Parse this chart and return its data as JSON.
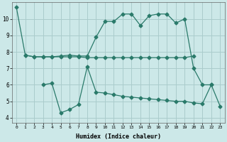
{
  "xlabel": "Humidex (Indice chaleur)",
  "bg_color": "#cce8e8",
  "grid_color": "#aacccc",
  "line_color": "#2a7a6a",
  "series1_x": [
    0,
    1,
    2,
    3,
    4,
    5,
    6,
    7,
    8,
    9,
    10,
    11,
    12,
    13,
    14,
    15,
    16,
    17,
    18,
    19,
    20,
    21,
    22
  ],
  "series1_y": [
    10.7,
    7.8,
    7.7,
    7.7,
    7.7,
    7.75,
    7.8,
    7.75,
    7.75,
    8.9,
    9.85,
    9.85,
    10.3,
    10.3,
    9.6,
    10.2,
    10.3,
    10.3,
    9.75,
    10.0,
    7.0,
    6.0,
    6.0
  ],
  "series2_x": [
    1,
    2,
    3,
    4,
    5,
    6,
    7,
    8,
    9,
    10,
    11,
    12,
    13,
    14,
    15,
    16,
    17,
    18,
    19,
    20
  ],
  "series2_y": [
    7.8,
    7.7,
    7.7,
    7.7,
    7.7,
    7.7,
    7.7,
    7.65,
    7.65,
    7.65,
    7.65,
    7.65,
    7.65,
    7.65,
    7.65,
    7.65,
    7.65,
    7.65,
    7.65,
    7.75
  ],
  "series3_x": [
    3,
    4,
    5,
    6,
    7,
    8,
    9,
    10,
    11,
    12,
    13,
    14,
    15,
    16,
    17,
    18,
    19,
    20,
    21,
    22,
    23
  ],
  "series3_y": [
    6.0,
    6.1,
    4.3,
    4.5,
    4.8,
    7.1,
    5.55,
    5.5,
    5.4,
    5.3,
    5.25,
    5.2,
    5.15,
    5.1,
    5.05,
    5.0,
    5.0,
    4.9,
    4.85,
    6.0,
    4.7
  ],
  "xlim": [
    -0.5,
    23.5
  ],
  "ylim": [
    3.7,
    11.0
  ],
  "yticks": [
    4,
    5,
    6,
    7,
    8,
    9,
    10
  ],
  "xticks": [
    0,
    1,
    2,
    3,
    4,
    5,
    6,
    7,
    8,
    9,
    10,
    11,
    12,
    13,
    14,
    15,
    16,
    17,
    18,
    19,
    20,
    21,
    22,
    23
  ]
}
